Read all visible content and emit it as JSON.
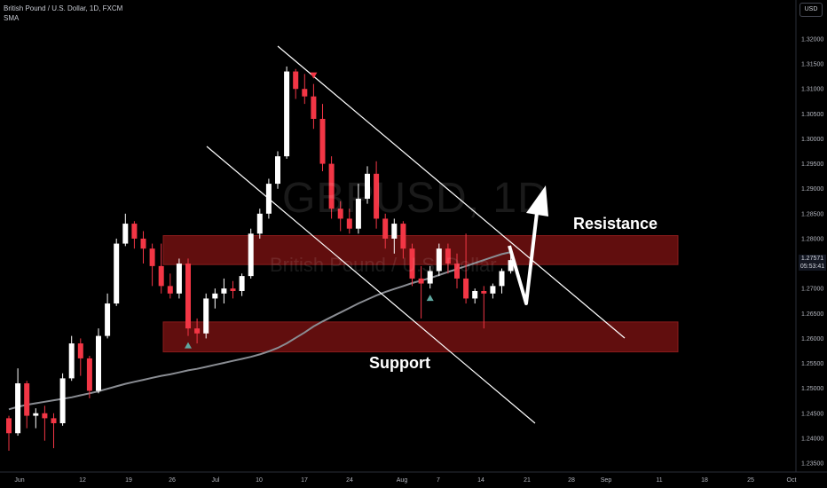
{
  "header": {
    "title": "British Pound / U.S. Dollar, 1D, FXCM",
    "indicator": "SMA",
    "currency_button": "USD"
  },
  "watermark": {
    "symbol": "GBPUSD, 1D",
    "description": "British Pound / U.S. Dollar"
  },
  "annotations": {
    "resistance": "Resistance",
    "support": "Support"
  },
  "price_tag": {
    "price": "1.27571",
    "countdown": "05:53:41"
  },
  "colors": {
    "background": "#000000",
    "up_candle": "#ffffff",
    "down_candle": "#f23645",
    "zone_fill": "#6b0f0f",
    "sma_line": "#8a8d93",
    "channel_lines": "#ffffff"
  },
  "chart_data": {
    "type": "candlestick",
    "title": "British Pound / U.S. Dollar, 1D, FXCM",
    "y_axis": {
      "ylim": [
        1.2335,
        1.3235
      ],
      "ticks": [
        "1.32000",
        "1.31500",
        "1.31000",
        "1.30500",
        "1.30000",
        "1.29500",
        "1.29000",
        "1.28500",
        "1.28000",
        "1.27500",
        "1.27000",
        "1.26500",
        "1.26000",
        "1.25500",
        "1.25000",
        "1.24500",
        "1.24000",
        "1.23500"
      ],
      "position": "right"
    },
    "x_axis": {
      "ticks": [
        "Jun",
        "12",
        "19",
        "26",
        "Jul",
        "10",
        "17",
        "24",
        "Aug",
        "7",
        "14",
        "21",
        "28",
        "Sep",
        "11",
        "18",
        "25",
        "Oct"
      ]
    },
    "candles": [
      {
        "o": 1.244,
        "h": 1.2445,
        "l": 1.2375,
        "c": 1.241
      },
      {
        "o": 1.241,
        "h": 1.254,
        "l": 1.2405,
        "c": 1.251
      },
      {
        "o": 1.251,
        "h": 1.2515,
        "l": 1.242,
        "c": 1.2445
      },
      {
        "o": 1.2445,
        "h": 1.246,
        "l": 1.242,
        "c": 1.245
      },
      {
        "o": 1.245,
        "h": 1.2465,
        "l": 1.2395,
        "c": 1.244
      },
      {
        "o": 1.244,
        "h": 1.245,
        "l": 1.238,
        "c": 1.243
      },
      {
        "o": 1.243,
        "h": 1.253,
        "l": 1.2425,
        "c": 1.252
      },
      {
        "o": 1.252,
        "h": 1.2605,
        "l": 1.2515,
        "c": 1.259
      },
      {
        "o": 1.259,
        "h": 1.26,
        "l": 1.2525,
        "c": 1.256
      },
      {
        "o": 1.256,
        "h": 1.2565,
        "l": 1.248,
        "c": 1.2495
      },
      {
        "o": 1.2495,
        "h": 1.262,
        "l": 1.249,
        "c": 1.2605
      },
      {
        "o": 1.2605,
        "h": 1.269,
        "l": 1.26,
        "c": 1.267
      },
      {
        "o": 1.267,
        "h": 1.28,
        "l": 1.2665,
        "c": 1.279
      },
      {
        "o": 1.279,
        "h": 1.285,
        "l": 1.2785,
        "c": 1.283
      },
      {
        "o": 1.283,
        "h": 1.2835,
        "l": 1.278,
        "c": 1.28
      },
      {
        "o": 1.28,
        "h": 1.2815,
        "l": 1.275,
        "c": 1.278
      },
      {
        "o": 1.278,
        "h": 1.279,
        "l": 1.2705,
        "c": 1.2745
      },
      {
        "o": 1.2745,
        "h": 1.279,
        "l": 1.269,
        "c": 1.2705
      },
      {
        "o": 1.2705,
        "h": 1.273,
        "l": 1.268,
        "c": 1.269
      },
      {
        "o": 1.269,
        "h": 1.276,
        "l": 1.268,
        "c": 1.275
      },
      {
        "o": 1.275,
        "h": 1.276,
        "l": 1.2605,
        "c": 1.262
      },
      {
        "o": 1.262,
        "h": 1.264,
        "l": 1.259,
        "c": 1.261
      },
      {
        "o": 1.261,
        "h": 1.269,
        "l": 1.26,
        "c": 1.268
      },
      {
        "o": 1.268,
        "h": 1.27,
        "l": 1.266,
        "c": 1.269
      },
      {
        "o": 1.269,
        "h": 1.272,
        "l": 1.267,
        "c": 1.27
      },
      {
        "o": 1.27,
        "h": 1.2715,
        "l": 1.268,
        "c": 1.2695
      },
      {
        "o": 1.2695,
        "h": 1.273,
        "l": 1.2685,
        "c": 1.2725
      },
      {
        "o": 1.2725,
        "h": 1.282,
        "l": 1.272,
        "c": 1.281
      },
      {
        "o": 1.281,
        "h": 1.286,
        "l": 1.28,
        "c": 1.285
      },
      {
        "o": 1.285,
        "h": 1.292,
        "l": 1.284,
        "c": 1.291
      },
      {
        "o": 1.291,
        "h": 1.2975,
        "l": 1.29,
        "c": 1.2965
      },
      {
        "o": 1.2965,
        "h": 1.3145,
        "l": 1.296,
        "c": 1.3135
      },
      {
        "o": 1.3135,
        "h": 1.314,
        "l": 1.308,
        "c": 1.31
      },
      {
        "o": 1.31,
        "h": 1.313,
        "l": 1.307,
        "c": 1.3085
      },
      {
        "o": 1.3085,
        "h": 1.311,
        "l": 1.302,
        "c": 1.304
      },
      {
        "o": 1.304,
        "h": 1.307,
        "l": 1.2935,
        "c": 1.295
      },
      {
        "o": 1.295,
        "h": 1.2965,
        "l": 1.284,
        "c": 1.286
      },
      {
        "o": 1.286,
        "h": 1.2875,
        "l": 1.2815,
        "c": 1.284
      },
      {
        "o": 1.284,
        "h": 1.286,
        "l": 1.281,
        "c": 1.282
      },
      {
        "o": 1.282,
        "h": 1.291,
        "l": 1.281,
        "c": 1.288
      },
      {
        "o": 1.288,
        "h": 1.2945,
        "l": 1.287,
        "c": 1.293
      },
      {
        "o": 1.293,
        "h": 1.2955,
        "l": 1.282,
        "c": 1.284
      },
      {
        "o": 1.284,
        "h": 1.285,
        "l": 1.278,
        "c": 1.28
      },
      {
        "o": 1.28,
        "h": 1.284,
        "l": 1.277,
        "c": 1.283
      },
      {
        "o": 1.283,
        "h": 1.2835,
        "l": 1.276,
        "c": 1.278
      },
      {
        "o": 1.278,
        "h": 1.279,
        "l": 1.2705,
        "c": 1.272
      },
      {
        "o": 1.272,
        "h": 1.2745,
        "l": 1.264,
        "c": 1.271
      },
      {
        "o": 1.271,
        "h": 1.2745,
        "l": 1.27,
        "c": 1.2735
      },
      {
        "o": 1.2735,
        "h": 1.279,
        "l": 1.2725,
        "c": 1.278
      },
      {
        "o": 1.278,
        "h": 1.279,
        "l": 1.273,
        "c": 1.275
      },
      {
        "o": 1.275,
        "h": 1.277,
        "l": 1.27,
        "c": 1.272
      },
      {
        "o": 1.272,
        "h": 1.281,
        "l": 1.267,
        "c": 1.268
      },
      {
        "o": 1.268,
        "h": 1.27,
        "l": 1.267,
        "c": 1.2695
      },
      {
        "o": 1.2695,
        "h": 1.2705,
        "l": 1.262,
        "c": 1.269
      },
      {
        "o": 1.269,
        "h": 1.271,
        "l": 1.268,
        "c": 1.2705
      },
      {
        "o": 1.2705,
        "h": 1.274,
        "l": 1.269,
        "c": 1.2735
      },
      {
        "o": 1.2735,
        "h": 1.277,
        "l": 1.273,
        "c": 1.2757
      }
    ],
    "sma": [
      1.2458,
      1.2463,
      1.2467,
      1.247,
      1.2473,
      1.2476,
      1.2479,
      1.2482,
      1.2486,
      1.249,
      1.2494,
      1.2499,
      1.2504,
      1.2509,
      1.2513,
      1.2517,
      1.2521,
      1.2525,
      1.2528,
      1.2532,
      1.2536,
      1.2539,
      1.2543,
      1.2547,
      1.2551,
      1.2555,
      1.2559,
      1.2563,
      1.2568,
      1.2574,
      1.2581,
      1.259,
      1.2601,
      1.2612,
      1.2624,
      1.2634,
      1.2643,
      1.2652,
      1.2661,
      1.267,
      1.2678,
      1.2686,
      1.2693,
      1.2699,
      1.2705,
      1.2711,
      1.2716,
      1.2721,
      1.2727,
      1.2733,
      1.2739,
      1.2745,
      1.2751,
      1.2757,
      1.2763,
      1.2769,
      1.2773
    ],
    "zones": [
      {
        "name": "Resistance",
        "from": 1.2748,
        "to": 1.2806
      },
      {
        "name": "Support",
        "from": 1.2573,
        "to": 1.2633
      }
    ],
    "markers": [
      {
        "type": "down-triangle",
        "at_candle": 34,
        "position": "above"
      },
      {
        "type": "up-triangle",
        "at_candle": 20,
        "position": "below"
      },
      {
        "type": "up-triangle",
        "at_candle": 47,
        "position": "below"
      }
    ]
  }
}
